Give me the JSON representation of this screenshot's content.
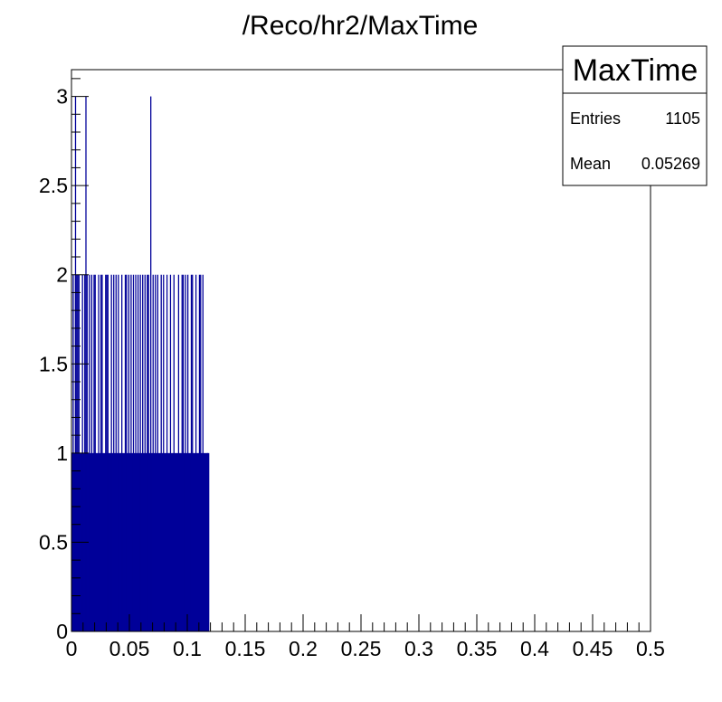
{
  "chart_data": {
    "type": "bar",
    "title": "/Reco/hr2/MaxTime",
    "xlabel": "",
    "ylabel": "",
    "xlim": [
      0,
      0.5
    ],
    "ylim": [
      0,
      3.15
    ],
    "bin_count": 500,
    "bin_width": 0.001,
    "fill_color": "#000099",
    "x_tick_labels": [
      "0",
      "0.05",
      "0.1",
      "0.15",
      "0.2",
      "0.25",
      "0.3",
      "0.35",
      "0.4",
      "0.45",
      "0.5"
    ],
    "y_tick_labels": [
      "0",
      "0.5",
      "1",
      "1.5",
      "2",
      "2.5",
      "3"
    ],
    "filled_range": [
      0,
      0.119
    ],
    "bins_value_2": [
      0.001,
      0.003,
      0.004,
      0.005,
      0.006,
      0.009,
      0.011,
      0.013,
      0.015,
      0.017,
      0.019,
      0.02,
      0.023,
      0.025,
      0.026,
      0.029,
      0.03,
      0.031,
      0.034,
      0.036,
      0.038,
      0.04,
      0.043,
      0.046,
      0.047,
      0.049,
      0.051,
      0.053,
      0.055,
      0.057,
      0.059,
      0.061,
      0.063,
      0.065,
      0.066,
      0.07,
      0.072,
      0.074,
      0.077,
      0.079,
      0.082,
      0.085,
      0.088,
      0.092,
      0.095,
      0.096,
      0.098,
      0.1,
      0.103,
      0.104,
      0.107,
      0.11,
      0.111,
      0.113
    ],
    "bins_value_3": [
      0.003,
      0.012,
      0.068
    ],
    "bins_value_1_extra": [
      0.117
    ],
    "legend": "top-right"
  },
  "stats_box": {
    "name": "MaxTime",
    "entries_label": "Entries",
    "entries_value": "1105",
    "mean_label": "Mean",
    "mean_value": "0.05269"
  }
}
